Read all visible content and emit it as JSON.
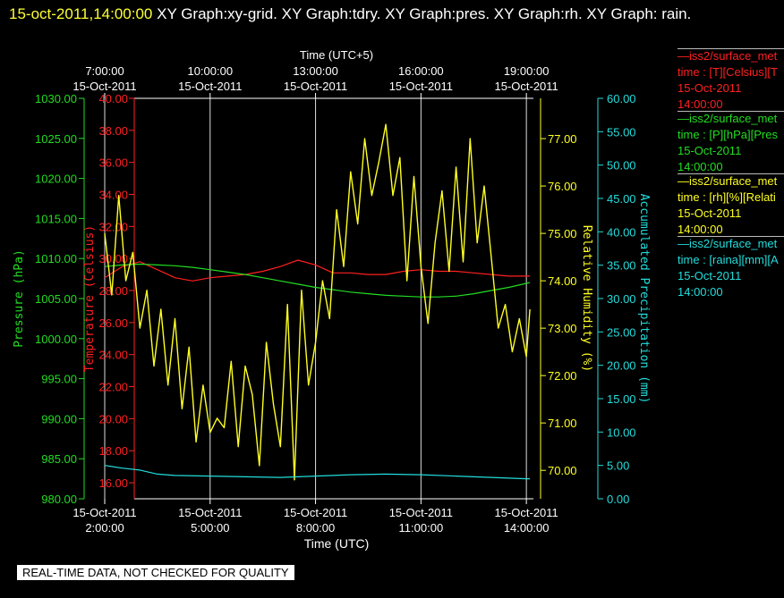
{
  "title": {
    "date_part": "15-oct-2011,14:00:00",
    "rest": "XY Graph:xy-grid.  XY Graph:tdry.  XY Graph:pres.  XY Graph:rh.  XY Graph: rain."
  },
  "notice": "REAL-TIME DATA, NOT CHECKED FOR QUALITY",
  "legend": [
    {
      "series": "—iss2/surface_met",
      "field": "time : [T][Celsius][T",
      "date": "15-Oct-2011",
      "time": "14:00:00",
      "color": "#ff2020"
    },
    {
      "series": "—iss2/surface_met",
      "field": "time : [P][hPa][Pres",
      "date": "15-Oct-2011",
      "time": "14:00:00",
      "color": "#22dd22"
    },
    {
      "series": "—iss2/surface_met",
      "field": "time : [rh][%][Relati",
      "date": "15-Oct-2011",
      "time": "14:00:00",
      "color": "#ffff22"
    },
    {
      "series": "—iss2/surface_met",
      "field": "time : [raina][mm][A",
      "date": "15-Oct-2011",
      "time": "14:00:00",
      "color": "#22dddd"
    }
  ],
  "chart_data": {
    "type": "line",
    "xlabel": "Time (UTC)",
    "x2label": "Time (UTC+5)",
    "xlim": [
      2,
      14.2
    ],
    "x_ticks": [
      {
        "t": 2,
        "date": "15-Oct-2011",
        "time": "2:00:00"
      },
      {
        "t": 5,
        "date": "15-Oct-2011",
        "time": "5:00:00"
      },
      {
        "t": 8,
        "date": "15-Oct-2011",
        "time": "8:00:00"
      },
      {
        "t": 11,
        "date": "15-Oct-2011",
        "time": "11:00:00"
      },
      {
        "t": 14,
        "date": "15-Oct-2011",
        "time": "14:00:00"
      }
    ],
    "x2_ticks": [
      {
        "t": 2,
        "date": "15-Oct-2011",
        "time": "7:00:00"
      },
      {
        "t": 5,
        "date": "15-Oct-2011",
        "time": "10:00:00"
      },
      {
        "t": 8,
        "date": "15-Oct-2011",
        "time": "13:00:00"
      },
      {
        "t": 11,
        "date": "15-Oct-2011",
        "time": "16:00:00"
      },
      {
        "t": 14,
        "date": "15-Oct-2011",
        "time": "19:00:00"
      }
    ],
    "grid": true,
    "axes": {
      "pressure": {
        "label": "Pressure (hPa)",
        "min": 980,
        "max": 1030,
        "ticks": [
          "980.00",
          "985.00",
          "990.00",
          "995.00",
          "1000.00",
          "1005.00",
          "1010.00",
          "1015.00",
          "1020.00",
          "1025.00",
          "1030.00"
        ],
        "color": "#22dd22"
      },
      "temperature": {
        "label": "Temperature (Celsius)",
        "min": 15,
        "max": 40,
        "ticks": [
          "16.00",
          "18.00",
          "20.00",
          "22.00",
          "24.00",
          "26.00",
          "28.00",
          "30.00",
          "32.00",
          "34.00",
          "36.00",
          "38.00",
          "40.00"
        ],
        "color": "#ff2020"
      },
      "rh": {
        "label": "Relative Humidity (%)",
        "min": 69.4,
        "max": 77.85,
        "ticks": [
          "70.00",
          "71.00",
          "72.00",
          "73.00",
          "74.00",
          "75.00",
          "76.00",
          "77.00"
        ],
        "color": "#ffff22"
      },
      "precip": {
        "label": "Accumulated Precipitation (mm)",
        "min": 0,
        "max": 60,
        "ticks": [
          "0.00",
          "5.00",
          "10.00",
          "15.00",
          "20.00",
          "25.00",
          "30.00",
          "35.00",
          "40.00",
          "45.00",
          "50.00",
          "55.00",
          "60.00"
        ],
        "color": "#22dddd"
      }
    },
    "series": [
      {
        "name": "iss2/surface_met time : [T][Celsius]",
        "axis": "temperature",
        "color": "#ff2020",
        "x": [
          2,
          2.5,
          3,
          3.5,
          4,
          4.5,
          5,
          5.5,
          6,
          6.5,
          7,
          7.5,
          8,
          8.5,
          9,
          9.5,
          10,
          10.5,
          11,
          11.5,
          12,
          12.5,
          13,
          13.5,
          14,
          14.1
        ],
        "y": [
          28.8,
          29.5,
          29.8,
          29.3,
          28.8,
          28.6,
          28.8,
          28.9,
          29.0,
          29.2,
          29.5,
          29.9,
          29.6,
          29.1,
          29.1,
          29.0,
          29.0,
          29.2,
          29.3,
          29.2,
          29.2,
          29.1,
          29.0,
          28.9,
          28.9,
          28.9
        ]
      },
      {
        "name": "iss2/surface_met time : [P][hPa]",
        "axis": "pressure",
        "color": "#22dd22",
        "x": [
          2,
          2.5,
          3,
          3.5,
          4,
          4.5,
          5,
          5.5,
          6,
          6.5,
          7,
          7.5,
          8,
          8.5,
          9,
          9.5,
          10,
          10.5,
          11,
          11.5,
          12,
          12.5,
          13,
          13.5,
          14,
          14.1
        ],
        "y": [
          1009.0,
          1009.2,
          1009.3,
          1009.2,
          1009.1,
          1008.9,
          1008.6,
          1008.3,
          1008.0,
          1007.6,
          1007.2,
          1006.8,
          1006.4,
          1006.1,
          1005.8,
          1005.6,
          1005.4,
          1005.3,
          1005.2,
          1005.2,
          1005.3,
          1005.6,
          1006.0,
          1006.4,
          1006.9,
          1007.0
        ]
      },
      {
        "name": "iss2/surface_met time : [rh][%]",
        "axis": "rh",
        "color": "#ffff22",
        "x": [
          2,
          2.2,
          2.4,
          2.6,
          2.8,
          3.0,
          3.2,
          3.4,
          3.6,
          3.8,
          4.0,
          4.2,
          4.4,
          4.6,
          4.8,
          5.0,
          5.2,
          5.4,
          5.6,
          5.8,
          6.0,
          6.2,
          6.4,
          6.6,
          6.8,
          7.0,
          7.2,
          7.4,
          7.6,
          7.8,
          8.0,
          8.2,
          8.4,
          8.6,
          8.8,
          9.0,
          9.2,
          9.4,
          9.6,
          9.8,
          10.0,
          10.2,
          10.4,
          10.6,
          10.8,
          11.0,
          11.2,
          11.4,
          11.6,
          11.8,
          12.0,
          12.2,
          12.4,
          12.6,
          12.8,
          13.0,
          13.2,
          13.4,
          13.6,
          13.8,
          14.0,
          14.1
        ],
        "y": [
          75.0,
          73.7,
          75.8,
          74.0,
          74.6,
          73.0,
          73.8,
          72.2,
          73.4,
          71.8,
          73.2,
          71.3,
          72.6,
          70.6,
          71.8,
          70.8,
          71.1,
          70.9,
          72.3,
          70.5,
          72.2,
          71.6,
          70.1,
          72.7,
          71.4,
          70.5,
          73.5,
          69.8,
          73.8,
          71.8,
          72.7,
          74.0,
          73.2,
          75.5,
          74.3,
          76.3,
          75.2,
          77.0,
          75.8,
          76.5,
          77.3,
          75.8,
          76.6,
          74.0,
          76.2,
          74.3,
          73.1,
          74.8,
          75.9,
          74.2,
          76.4,
          74.4,
          77.0,
          74.8,
          76.0,
          74.5,
          73.0,
          73.5,
          72.5,
          73.2,
          72.4,
          73.4
        ]
      },
      {
        "name": "iss2/surface_met time : [raina][mm]",
        "axis": "precip",
        "color": "#22dddd",
        "x": [
          2,
          2.5,
          3,
          3.5,
          4,
          5,
          6,
          7,
          8,
          9,
          10,
          11,
          12,
          13,
          14,
          14.1
        ],
        "y": [
          5.0,
          4.6,
          4.3,
          3.7,
          3.5,
          3.4,
          3.3,
          3.2,
          3.4,
          3.6,
          3.7,
          3.6,
          3.4,
          3.2,
          3.0,
          3.0
        ]
      }
    ]
  }
}
